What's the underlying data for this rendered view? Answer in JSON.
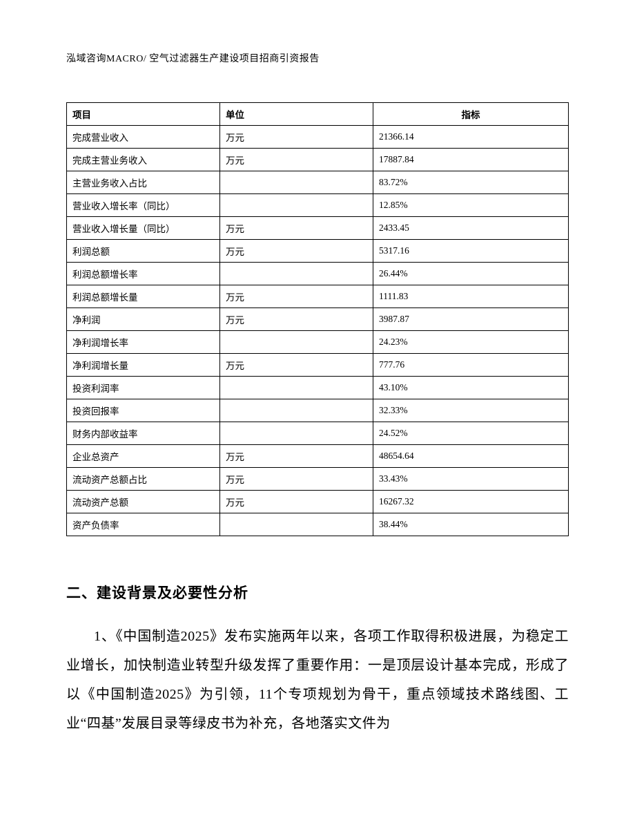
{
  "header": "泓域咨询MACRO/ 空气过滤器生产建设项目招商引资报告",
  "table": {
    "columns": [
      "项目",
      "单位",
      "指标"
    ],
    "col_align": [
      "left",
      "left",
      "center"
    ],
    "rows": [
      [
        "完成营业收入",
        "万元",
        "21366.14"
      ],
      [
        "完成主营业务收入",
        "万元",
        "17887.84"
      ],
      [
        "主营业务收入占比",
        "",
        "83.72%"
      ],
      [
        "营业收入增长率（同比）",
        "",
        "12.85%"
      ],
      [
        "营业收入增长量（同比）",
        "万元",
        "2433.45"
      ],
      [
        "利润总额",
        "万元",
        "5317.16"
      ],
      [
        "利润总额增长率",
        "",
        "26.44%"
      ],
      [
        "利润总额增长量",
        "万元",
        "1111.83"
      ],
      [
        "净利润",
        "万元",
        "3987.87"
      ],
      [
        "净利润增长率",
        "",
        "24.23%"
      ],
      [
        "净利润增长量",
        "万元",
        "777.76"
      ],
      [
        "投资利润率",
        "",
        "43.10%"
      ],
      [
        "投资回报率",
        "",
        "32.33%"
      ],
      [
        "财务内部收益率",
        "",
        "24.52%"
      ],
      [
        "企业总资产",
        "万元",
        "48654.64"
      ],
      [
        "流动资产总额占比",
        "万元",
        "33.43%"
      ],
      [
        "流动资产总额",
        "万元",
        "16267.32"
      ],
      [
        "资产负债率",
        "",
        "38.44%"
      ]
    ],
    "border_color": "#000000",
    "header_font_weight": "bold",
    "cell_font_size": 13.5
  },
  "section": {
    "title": "二、建设背景及必要性分析",
    "paragraph1": "1、《中国制造2025》发布实施两年以来，各项工作取得积极进展，为稳定工业增长，加快制造业转型升级发挥了重要作用：一是顶层设计基本完成，形成了以《中国制造2025》为引领，11个专项规划为骨干，重点领域技术路线图、工业“四基”发展目录等绿皮书为补充，各地落实文件为"
  },
  "colors": {
    "background": "#ffffff",
    "text": "#000000",
    "table_border": "#000000"
  },
  "fonts": {
    "header": "SimSun",
    "table": "SimSun",
    "section_title": "SimHei",
    "body": "FangSong"
  }
}
